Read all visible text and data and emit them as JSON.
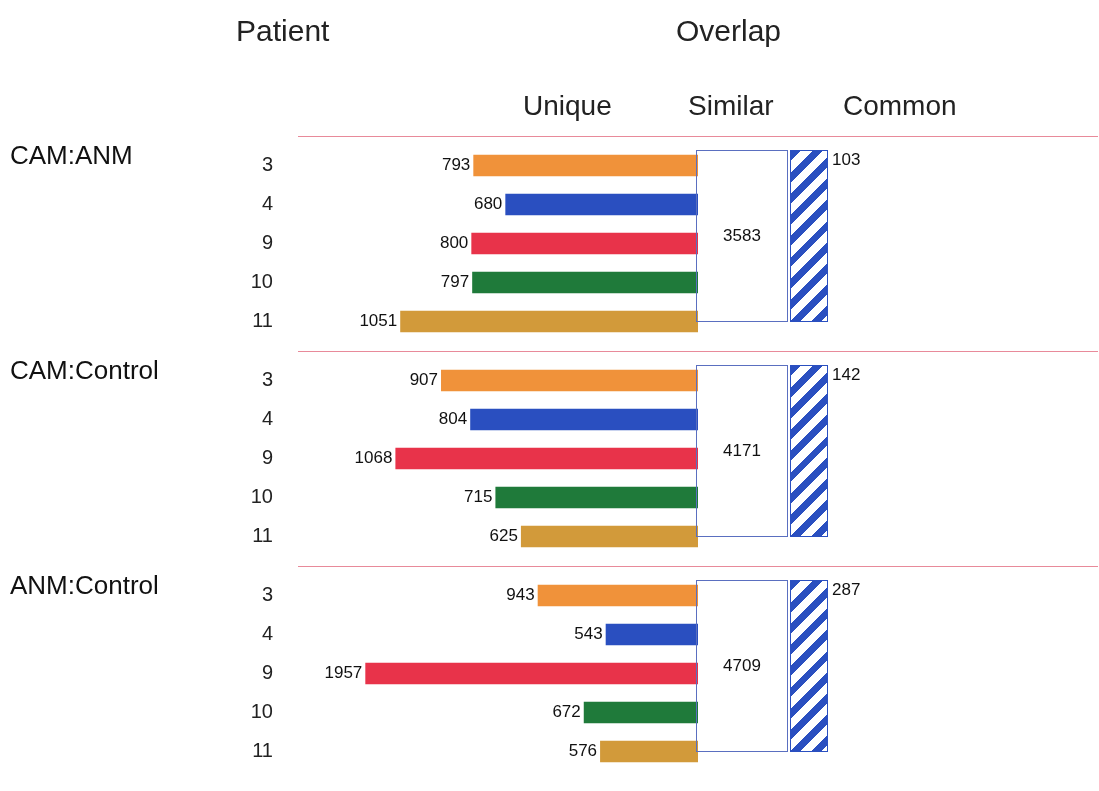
{
  "chart_data": [
    {
      "type": "bar",
      "orientation": "horizontal",
      "title": "CAM:ANM",
      "ylabel": "Patient",
      "categories": [
        "3",
        "4",
        "9",
        "10",
        "11"
      ],
      "values": [
        793,
        680,
        800,
        797,
        1051
      ],
      "colors": [
        "#f0923a",
        "#2a4fc0",
        "#e8334a",
        "#1f7a3a",
        "#d29a3a"
      ],
      "tick_labels": "y",
      "data_labels": true,
      "annotations": [
        "3583",
        "103",
        "Overlap",
        "Unique",
        "Similar",
        "Common"
      ]
    },
    {
      "type": "bar",
      "orientation": "horizontal",
      "title": "CAM:Control",
      "categories": [
        "3",
        "4",
        "9",
        "10",
        "11"
      ],
      "values": [
        907,
        804,
        1068,
        715,
        625
      ],
      "colors": [
        "#f0923a",
        "#2a4fc0",
        "#e8334a",
        "#1f7a3a",
        "#d29a3a"
      ],
      "tick_labels": "y",
      "data_labels": true,
      "annotations": [
        "4171",
        "142"
      ]
    },
    {
      "type": "bar",
      "orientation": "horizontal",
      "title": "ANM:Control",
      "categories": [
        "3",
        "4",
        "9",
        "10",
        "11"
      ],
      "values": [
        943,
        543,
        1957,
        672,
        576
      ],
      "colors": [
        "#f0923a",
        "#2a4fc0",
        "#e8334a",
        "#1f7a3a",
        "#d29a3a"
      ],
      "tick_labels": "y",
      "data_labels": true,
      "annotations": [
        "4709",
        "287"
      ]
    }
  ]
}
